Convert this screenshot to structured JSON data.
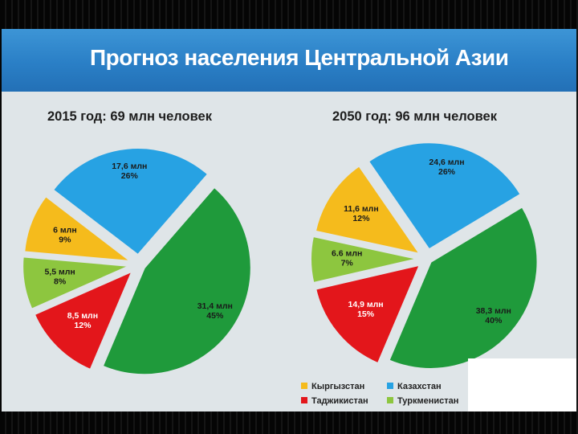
{
  "title": "Прогноз населения Центральной Азии",
  "colors": {
    "Кыргызстан": "#f5bb1c",
    "Казахстан": "#27a2e3",
    "Таджикистан": "#e3161b",
    "Туркменистан": "#8dc63f",
    "Узбекистан": "#1f9a3b"
  },
  "chart_data": [
    {
      "type": "pie",
      "title": "2015 год: 69 млн человек",
      "slices": [
        {
          "value": 12,
          "label_line1": "8,5 млн",
          "label_line2": "12%",
          "color_key": "Таджикистан"
        },
        {
          "value": 8,
          "label_line1": "5,5 млн",
          "label_line2": "8%",
          "color_key": "Туркменистан"
        },
        {
          "value": 9,
          "label_line1": "6 млн",
          "label_line2": "9%",
          "color_key": "Кыргызстан"
        },
        {
          "value": 26,
          "label_line1": "17,6 млн",
          "label_line2": "26%",
          "color_key": "Казахстан"
        },
        {
          "value": 45,
          "label_line1": "31,4 млн",
          "label_line2": "45%",
          "color_key": "Узбекистан"
        }
      ]
    },
    {
      "type": "pie",
      "title": "2050 год: 96 млн человек",
      "slices": [
        {
          "value": 15,
          "label_line1": "14,9 млн",
          "label_line2": "15%",
          "color_key": "Таджикистан"
        },
        {
          "value": 7,
          "label_line1": "6.6 млн",
          "label_line2": "7%",
          "color_key": "Туркменистан"
        },
        {
          "value": 12,
          "label_line1": "11,6 млн",
          "label_line2": "12%",
          "color_key": "Кыргызстан"
        },
        {
          "value": 26,
          "label_line1": "24,6  млн",
          "label_line2": "26%",
          "color_key": "Казахстан"
        },
        {
          "value": 40,
          "label_line1": "38,3 млн",
          "label_line2": "40%",
          "color_key": "Узбекистан"
        }
      ]
    }
  ],
  "legend": [
    {
      "label": "Кыргызстан",
      "color_key": "Кыргызстан"
    },
    {
      "label": "Казахстан",
      "color_key": "Казахстан"
    },
    {
      "label": "Таджикистан",
      "color_key": "Таджикистан"
    },
    {
      "label": "Туркменистан",
      "color_key": "Туркменистан"
    }
  ]
}
